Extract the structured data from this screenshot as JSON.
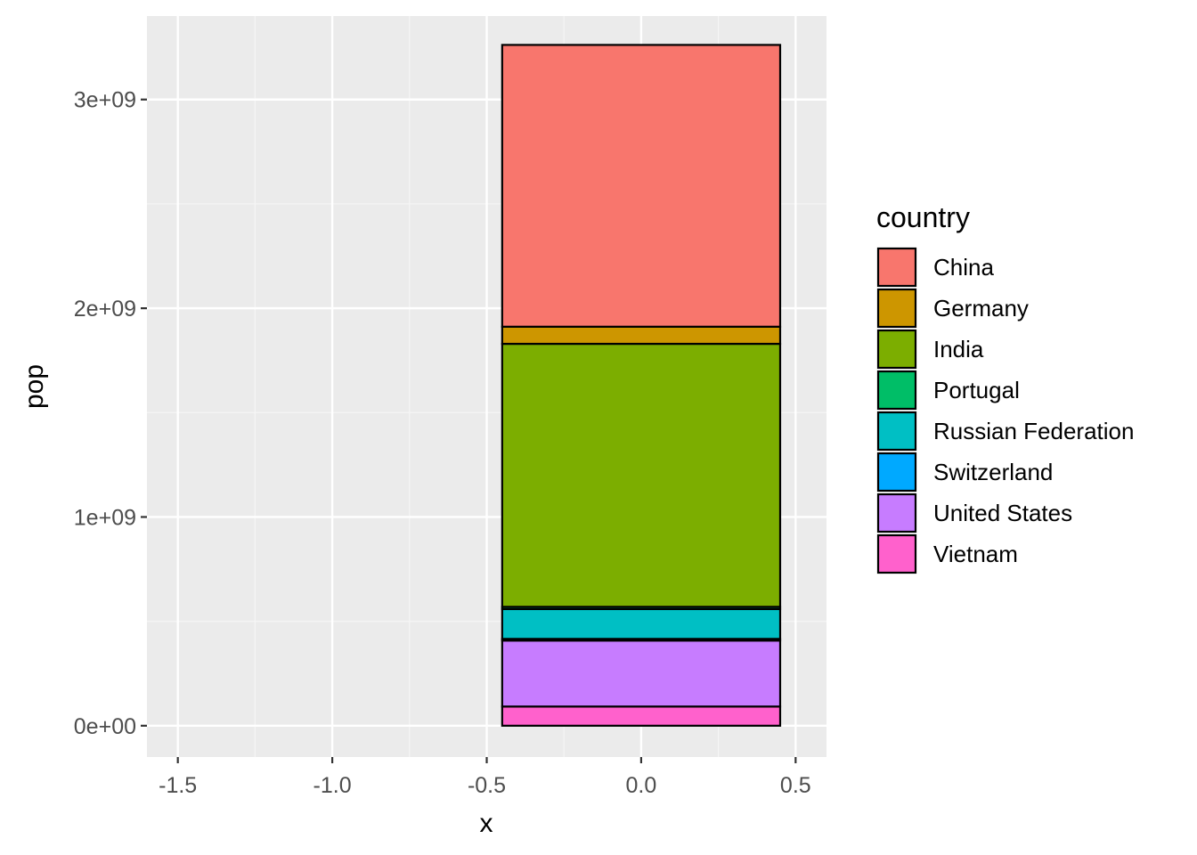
{
  "chart_data": {
    "type": "bar",
    "stacked": true,
    "xlabel": "x",
    "ylabel": "pop",
    "xlim": [
      -1.6,
      0.6
    ],
    "ylim": [
      -150000000,
      3400000000
    ],
    "x_ticks": [
      -1.5,
      -1.0,
      -0.5,
      0.0,
      0.5
    ],
    "x_tick_labels": [
      "-1.5",
      "-1.0",
      "-0.5",
      "0.0",
      "0.5"
    ],
    "y_ticks": [
      0,
      1000000000,
      2000000000,
      3000000000
    ],
    "y_tick_labels": [
      "0e+00",
      "1e+09",
      "2e+09",
      "3e+09"
    ],
    "bar_x": 0,
    "bar_width": 0.9,
    "grid": true,
    "legend": {
      "title": "country",
      "position": "right"
    },
    "series": [
      {
        "name": "China",
        "value": 1350000000,
        "color": "#F8766D"
      },
      {
        "name": "Germany",
        "value": 82000000,
        "color": "#CD9600"
      },
      {
        "name": "India",
        "value": 1260000000,
        "color": "#7CAE00"
      },
      {
        "name": "Portugal",
        "value": 10600000,
        "color": "#00BE67"
      },
      {
        "name": "Russian Federation",
        "value": 143000000,
        "color": "#00BFC4"
      },
      {
        "name": "Switzerland",
        "value": 8000000,
        "color": "#00A9FF"
      },
      {
        "name": "United States",
        "value": 316000000,
        "color": "#C77CFF"
      },
      {
        "name": "Vietnam",
        "value": 92000000,
        "color": "#FF61CC"
      }
    ]
  }
}
